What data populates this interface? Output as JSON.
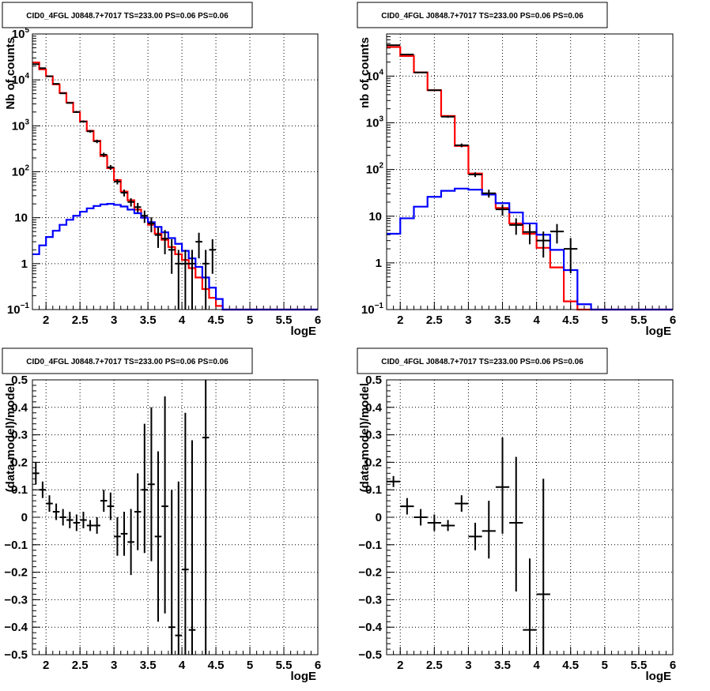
{
  "colors": {
    "data": "#000000",
    "total_model": "#ff0000",
    "source_model": "#0000ff",
    "grid": "#000000"
  },
  "chart_data": [
    {
      "type": "histogram",
      "title": "CID0_4FGL J0848.7+7017 TS=233.00 PS=0.06 PS=0.06",
      "xlabel": "logE",
      "ylabel": "Nb of counts",
      "xlim": [
        1.8,
        6.0
      ],
      "ylim": [
        0.1,
        100000
      ],
      "yscale": "log",
      "grid": true,
      "xticks": [
        "2",
        "2.5",
        "3",
        "3.5",
        "4",
        "4.5",
        "5",
        "5.5",
        "6"
      ],
      "yticks": [
        {
          "v": 0.1,
          "b": "10",
          "e": "−1"
        },
        {
          "v": 1,
          "b": "1",
          "e": ""
        },
        {
          "v": 10,
          "b": "10",
          "e": ""
        },
        {
          "v": 100,
          "b": "10",
          "e": "2"
        },
        {
          "v": 1000,
          "b": "10",
          "e": "3"
        },
        {
          "v": 10000,
          "b": "10",
          "e": "4"
        },
        {
          "v": 100000,
          "b": "10",
          "e": "5"
        }
      ],
      "bin_width": 0.1,
      "bin_start": 1.8,
      "series": [
        {
          "values": [
            24000,
            17000,
            12000,
            8000,
            5200,
            3200,
            2000,
            1250,
            780,
            470,
            220,
            120,
            66,
            37,
            24,
            15,
            10,
            7,
            4.5,
            3.3,
            2.3,
            1.6,
            1.2,
            0.8,
            0.5,
            0.28,
            0.18,
            0.12,
            0.1,
            0.1,
            0.1,
            0.1,
            0.1,
            0.1,
            0.1,
            0.1,
            0.1,
            0.1,
            0.1,
            0.1,
            0.1,
            0.1
          ],
          "role": "total_model"
        },
        {
          "values": [
            1.6,
            2.5,
            3.8,
            5.2,
            7,
            9,
            11,
            13.5,
            16,
            18,
            19.5,
            20,
            19,
            17.5,
            15,
            12.5,
            10,
            8,
            6.3,
            4.8,
            3.6,
            2.7,
            1.9,
            1.3,
            0.85,
            0.5,
            0.3,
            0.17,
            0.1,
            0.1,
            0.1,
            0.1,
            0.1,
            0.1,
            0.1,
            0.1,
            0.1,
            0.1,
            0.1,
            0.1,
            0.1,
            0.1
          ],
          "role": "source_model"
        }
      ],
      "points": [
        {
          "x": 1.85,
          "y": 22000,
          "lo": 21700,
          "hi": 22300
        },
        {
          "x": 1.95,
          "y": 18000,
          "lo": 17730,
          "hi": 18270
        },
        {
          "x": 2.05,
          "y": 12000,
          "lo": 11780,
          "hi": 12220
        },
        {
          "x": 2.15,
          "y": 8200,
          "lo": 8020,
          "hi": 8380
        },
        {
          "x": 2.25,
          "y": 5100,
          "lo": 4960,
          "hi": 5240
        },
        {
          "x": 2.35,
          "y": 3150,
          "lo": 3040,
          "hi": 3260
        },
        {
          "x": 2.45,
          "y": 2000,
          "lo": 1910,
          "hi": 2090
        },
        {
          "x": 2.55,
          "y": 1240,
          "lo": 1170,
          "hi": 1310
        },
        {
          "x": 2.65,
          "y": 760,
          "lo": 710,
          "hi": 810
        },
        {
          "x": 2.75,
          "y": 460,
          "lo": 420,
          "hi": 500
        },
        {
          "x": 2.85,
          "y": 235,
          "lo": 210,
          "hi": 260
        },
        {
          "x": 2.95,
          "y": 125,
          "lo": 110,
          "hi": 140
        },
        {
          "x": 3.05,
          "y": 61,
          "lo": 53,
          "hi": 69
        },
        {
          "x": 3.15,
          "y": 35,
          "lo": 29,
          "hi": 41
        },
        {
          "x": 3.25,
          "y": 22,
          "lo": 17.5,
          "hi": 26.5
        },
        {
          "x": 3.35,
          "y": 17,
          "lo": 13,
          "hi": 21
        },
        {
          "x": 3.45,
          "y": 11,
          "lo": 7.7,
          "hi": 14.3
        },
        {
          "x": 3.55,
          "y": 7.5,
          "lo": 4.8,
          "hi": 10.2
        },
        {
          "x": 3.65,
          "y": 4.2,
          "lo": 2.2,
          "hi": 6.2
        },
        {
          "x": 3.75,
          "y": 3.5,
          "lo": 1.6,
          "hi": 5.4
        },
        {
          "x": 3.85,
          "y": 2,
          "lo": 0.6,
          "hi": 3.4
        },
        {
          "x": 3.95,
          "y": 1,
          "lo": 0.1,
          "hi": 2
        },
        {
          "x": 4.05,
          "y": 1,
          "lo": 0.1,
          "hi": 2
        },
        {
          "x": 4.15,
          "y": 1,
          "lo": 0.1,
          "hi": 2
        },
        {
          "x": 4.25,
          "y": 3,
          "lo": 1.3,
          "hi": 4.7
        },
        {
          "x": 4.35,
          "y": 1,
          "lo": 0.1,
          "hi": 2
        },
        {
          "x": 4.45,
          "y": 2,
          "lo": 0.6,
          "hi": 3.4
        }
      ]
    },
    {
      "type": "histogram",
      "title": "CID0_4FGL J0848.7+7017 TS=233.00 PS=0.06 PS=0.06",
      "xlabel": "logE",
      "ylabel": "nb of counts",
      "xlim": [
        1.8,
        6.0
      ],
      "ylim": [
        0.1,
        80000
      ],
      "yscale": "log",
      "grid": true,
      "xticks": [
        "2",
        "2.5",
        "3",
        "3.5",
        "4",
        "4.5",
        "5",
        "5.5",
        "6"
      ],
      "yticks": [
        {
          "v": 0.1,
          "b": "10",
          "e": "−1"
        },
        {
          "v": 1,
          "b": "1",
          "e": ""
        },
        {
          "v": 10,
          "b": "10",
          "e": ""
        },
        {
          "v": 100,
          "b": "10",
          "e": "2"
        },
        {
          "v": 1000,
          "b": "10",
          "e": "3"
        },
        {
          "v": 10000,
          "b": "10",
          "e": "4"
        }
      ],
      "bin_width": 0.2,
      "bin_start": 1.8,
      "series": [
        {
          "values": [
            42000,
            27000,
            12000,
            5000,
            1400,
            320,
            82,
            30,
            15,
            7,
            4.2,
            2.1,
            0.8,
            0.15,
            0.1,
            0.1,
            0.1,
            0.1,
            0.1,
            0.1,
            0.1
          ],
          "role": "total_model"
        },
        {
          "values": [
            4.2,
            9,
            16,
            26,
            35,
            39,
            37,
            29,
            19,
            12,
            7,
            4,
            1.9,
            0.7,
            0.13,
            0.1,
            0.1,
            0.1,
            0.1,
            0.1,
            0.1
          ],
          "role": "source_model"
        }
      ],
      "points": [
        {
          "x": 1.9,
          "y": 46000,
          "lo": 45600,
          "hi": 46400
        },
        {
          "x": 2.1,
          "y": 29000,
          "lo": 28700,
          "hi": 29300
        },
        {
          "x": 2.3,
          "y": 12000,
          "lo": 11780,
          "hi": 12220
        },
        {
          "x": 2.5,
          "y": 5000,
          "lo": 4860,
          "hi": 5140
        },
        {
          "x": 2.7,
          "y": 1350,
          "lo": 1280,
          "hi": 1420
        },
        {
          "x": 2.9,
          "y": 330,
          "lo": 300,
          "hi": 360
        },
        {
          "x": 3.1,
          "y": 78,
          "lo": 69,
          "hi": 87
        },
        {
          "x": 3.3,
          "y": 31,
          "lo": 25,
          "hi": 37
        },
        {
          "x": 3.5,
          "y": 14,
          "lo": 10.3,
          "hi": 17.7
        },
        {
          "x": 3.7,
          "y": 6.5,
          "lo": 4,
          "hi": 9
        },
        {
          "x": 3.9,
          "y": 4.6,
          "lo": 2.5,
          "hi": 6.7
        },
        {
          "x": 4.1,
          "y": 3,
          "lo": 1.3,
          "hi": 4.7
        },
        {
          "x": 4.3,
          "y": 4.7,
          "lo": 2.6,
          "hi": 6.8
        },
        {
          "x": 4.5,
          "y": 2,
          "lo": 0.6,
          "hi": 3.4
        }
      ]
    },
    {
      "type": "scatter",
      "title": "CID0_4FGL J0848.7+7017 TS=233.00 PS=0.06 PS=0.06",
      "xlabel": "logE",
      "ylabel": "(data-model)/model",
      "xlim": [
        1.8,
        6.0
      ],
      "ylim": [
        -0.5,
        0.5
      ],
      "grid": true,
      "xticks": [
        "2",
        "2.5",
        "3",
        "3.5",
        "4",
        "4.5",
        "5",
        "5.5",
        "6"
      ],
      "yticks": [
        "−0.5",
        "−0.4",
        "−0.3",
        "−0.2",
        "−0.1",
        "0",
        "0.1",
        "0.2",
        "0.3",
        "0.4",
        "0.5"
      ],
      "xerr": 0.05,
      "points": [
        {
          "x": 1.85,
          "y": 0.16,
          "lo": 0.12,
          "hi": 0.2
        },
        {
          "x": 1.95,
          "y": 0.1,
          "lo": 0.07,
          "hi": 0.13
        },
        {
          "x": 2.05,
          "y": 0.05,
          "lo": 0.02,
          "hi": 0.08
        },
        {
          "x": 2.15,
          "y": 0.02,
          "lo": -0.01,
          "hi": 0.05
        },
        {
          "x": 2.25,
          "y": 0.0,
          "lo": -0.03,
          "hi": 0.03
        },
        {
          "x": 2.35,
          "y": -0.01,
          "lo": -0.04,
          "hi": 0.02
        },
        {
          "x": 2.45,
          "y": -0.02,
          "lo": -0.05,
          "hi": 0.01
        },
        {
          "x": 2.55,
          "y": -0.01,
          "lo": -0.04,
          "hi": 0.02
        },
        {
          "x": 2.65,
          "y": -0.03,
          "lo": -0.05,
          "hi": -0.01
        },
        {
          "x": 2.75,
          "y": -0.03,
          "lo": -0.06,
          "hi": 0.0
        },
        {
          "x": 2.85,
          "y": 0.06,
          "lo": 0.02,
          "hi": 0.1
        },
        {
          "x": 2.95,
          "y": 0.04,
          "lo": -0.01,
          "hi": 0.09
        },
        {
          "x": 3.05,
          "y": -0.07,
          "lo": -0.14,
          "hi": 0.0
        },
        {
          "x": 3.15,
          "y": -0.06,
          "lo": -0.14,
          "hi": 0.02
        },
        {
          "x": 3.25,
          "y": -0.09,
          "lo": -0.21,
          "hi": 0.03
        },
        {
          "x": 3.35,
          "y": 0.02,
          "lo": -0.12,
          "hi": 0.16
        },
        {
          "x": 3.45,
          "y": 0.1,
          "lo": -0.13,
          "hi": 0.34
        },
        {
          "x": 3.55,
          "y": 0.12,
          "lo": -0.16,
          "hi": 0.4
        },
        {
          "x": 3.65,
          "y": -0.07,
          "lo": -0.38,
          "hi": 0.24
        },
        {
          "x": 3.75,
          "y": 0.04,
          "lo": -0.35,
          "hi": 0.44
        },
        {
          "x": 3.85,
          "y": -0.4,
          "lo": -0.5,
          "hi": 0.1
        },
        {
          "x": 3.95,
          "y": -0.43,
          "lo": -0.5,
          "hi": 0.13
        },
        {
          "x": 4.05,
          "y": -0.19,
          "lo": -0.5,
          "hi": 0.38
        },
        {
          "x": 4.15,
          "y": -0.41,
          "lo": -0.5,
          "hi": 0.28
        },
        {
          "x": 4.35,
          "y": 0.29,
          "lo": -0.5,
          "hi": 0.5
        }
      ]
    },
    {
      "type": "scatter",
      "title": "CID0_4FGL J0848.7+7017 TS=233.00 PS=0.06 PS=0.06",
      "xlabel": "logE",
      "ylabel": "(data-model)/model",
      "xlim": [
        1.8,
        6.0
      ],
      "ylim": [
        -0.5,
        0.5
      ],
      "grid": true,
      "xticks": [
        "2",
        "2.5",
        "3",
        "3.5",
        "4",
        "4.5",
        "5",
        "5.5",
        "6"
      ],
      "yticks": [
        "−0.5",
        "−0.4",
        "−0.3",
        "−0.2",
        "−0.1",
        "0",
        "0.1",
        "0.2",
        "0.3",
        "0.4",
        "0.5"
      ],
      "xerr": 0.1,
      "points": [
        {
          "x": 1.9,
          "y": 0.13,
          "lo": 0.11,
          "hi": 0.15
        },
        {
          "x": 2.1,
          "y": 0.04,
          "lo": 0.01,
          "hi": 0.07
        },
        {
          "x": 2.3,
          "y": 0.0,
          "lo": -0.03,
          "hi": 0.03
        },
        {
          "x": 2.5,
          "y": -0.02,
          "lo": -0.05,
          "hi": 0.01
        },
        {
          "x": 2.7,
          "y": -0.03,
          "lo": -0.05,
          "hi": -0.01
        },
        {
          "x": 2.9,
          "y": 0.05,
          "lo": 0.02,
          "hi": 0.08
        },
        {
          "x": 3.1,
          "y": -0.07,
          "lo": -0.12,
          "hi": -0.02
        },
        {
          "x": 3.3,
          "y": -0.05,
          "lo": -0.15,
          "hi": 0.06
        },
        {
          "x": 3.5,
          "y": 0.11,
          "lo": -0.06,
          "hi": 0.29
        },
        {
          "x": 3.7,
          "y": -0.02,
          "lo": -0.27,
          "hi": 0.22
        },
        {
          "x": 3.9,
          "y": -0.41,
          "lo": -0.5,
          "hi": -0.15
        },
        {
          "x": 4.1,
          "y": -0.28,
          "lo": -0.5,
          "hi": 0.14
        }
      ]
    }
  ]
}
